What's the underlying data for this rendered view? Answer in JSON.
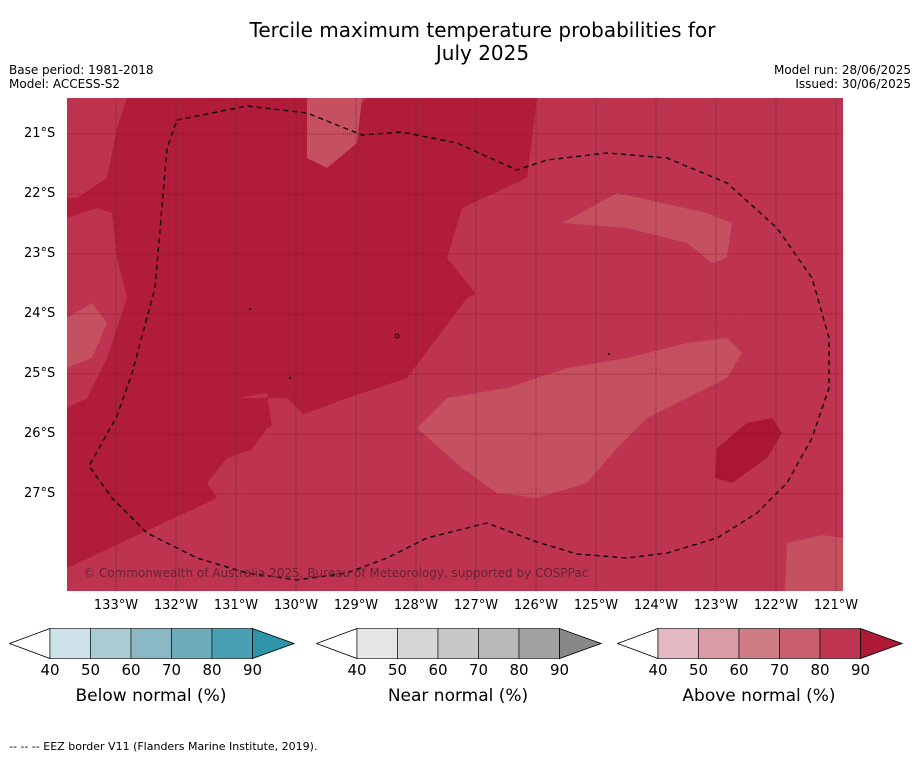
{
  "title_line1": "Tercile maximum temperature probabilities for",
  "title_line2": "July 2025",
  "meta_left": [
    "Base period: 1981-2018",
    "Model: ACCESS-S2"
  ],
  "meta_right": [
    "Model run: 28/06/2025",
    "Issued: 30/06/2025"
  ],
  "copyright": "© Commonwealth of Australia 2025, Bureau of Meteorology, supported by COSPPac",
  "lat_labels": [
    "21°S",
    "22°S",
    "23°S",
    "24°S",
    "25°S",
    "26°S",
    "27°S"
  ],
  "lon_labels": [
    "133°W",
    "132°W",
    "131°W",
    "130°W",
    "129°W",
    "128°W",
    "127°W",
    "126°W",
    "125°W",
    "124°W",
    "123°W",
    "122°W",
    "121°W"
  ],
  "colorbars": [
    {
      "label": "Below normal (%)",
      "ticks": [
        "40",
        "50",
        "60",
        "70",
        "80",
        "90"
      ],
      "colors": [
        "#cde3e9",
        "#a9cbd2",
        "#8ab8c4",
        "#6cacbb",
        "#48a1b2",
        "#2e94a8"
      ]
    },
    {
      "label": "Near normal (%)",
      "ticks": [
        "40",
        "50",
        "60",
        "70",
        "80",
        "90"
      ],
      "colors": [
        "#e6e6e6",
        "#d6d6d6",
        "#c8c8c8",
        "#b8b8b8",
        "#a2a2a2",
        "#888888"
      ]
    },
    {
      "label": "Above normal (%)",
      "ticks": [
        "40",
        "50",
        "60",
        "70",
        "80",
        "90"
      ],
      "colors": [
        "#e4b8c1",
        "#d99ba5",
        "#cf7c87",
        "#c95e6c",
        "#bf3550",
        "#ac1a36"
      ]
    }
  ],
  "footnote": "--  --  -- EEZ border V11 (Flanders Marine Institute, 2019).",
  "map_colors": {
    "high": "#b01c39",
    "mid": "#bd3350",
    "low": "#c55060"
  }
}
